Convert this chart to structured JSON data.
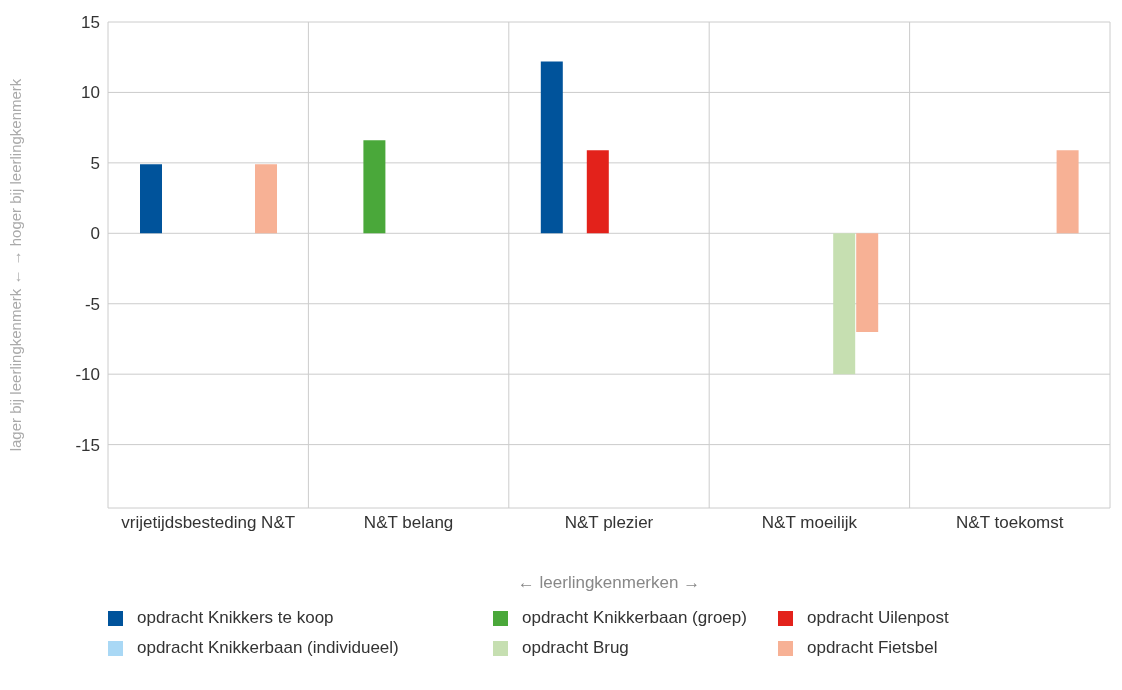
{
  "chart_data": {
    "type": "bar",
    "xlabel": "← leerlingkenmerken →",
    "ylabel": "lager bij leerlingkenmerk ← → hoger bij leerlingkenmerk",
    "categories": [
      "vrijetijdsbesteding N&T",
      "N&T belang",
      "N&T plezier",
      "N&T moeilijk",
      "N&T toekomst"
    ],
    "series": [
      {
        "name": "opdracht Knikkers te koop",
        "color": "#00539b",
        "values": [
          4.9,
          null,
          12.2,
          null,
          null
        ]
      },
      {
        "name": "opdracht Knikkerbaan (groep)",
        "color": "#4aa83a",
        "values": [
          null,
          6.6,
          null,
          null,
          null
        ]
      },
      {
        "name": "opdracht Uilenpost",
        "color": "#e3221b",
        "values": [
          null,
          null,
          5.9,
          null,
          null
        ]
      },
      {
        "name": "opdracht Knikkerbaan (individueel)",
        "color": "#a9d8f5",
        "values": [
          null,
          null,
          null,
          null,
          null
        ]
      },
      {
        "name": "opdracht Brug",
        "color": "#c6dfb1",
        "values": [
          null,
          null,
          null,
          -10,
          null
        ]
      },
      {
        "name": "opdracht Fietsbel",
        "color": "#f7b195",
        "values": [
          4.9,
          null,
          null,
          -7,
          5.9
        ]
      }
    ],
    "ylim": [
      -19.5,
      15
    ],
    "yticks": [
      -15,
      -10,
      -5,
      0,
      5,
      10,
      15
    ],
    "grid": true,
    "legend": "bottom"
  }
}
